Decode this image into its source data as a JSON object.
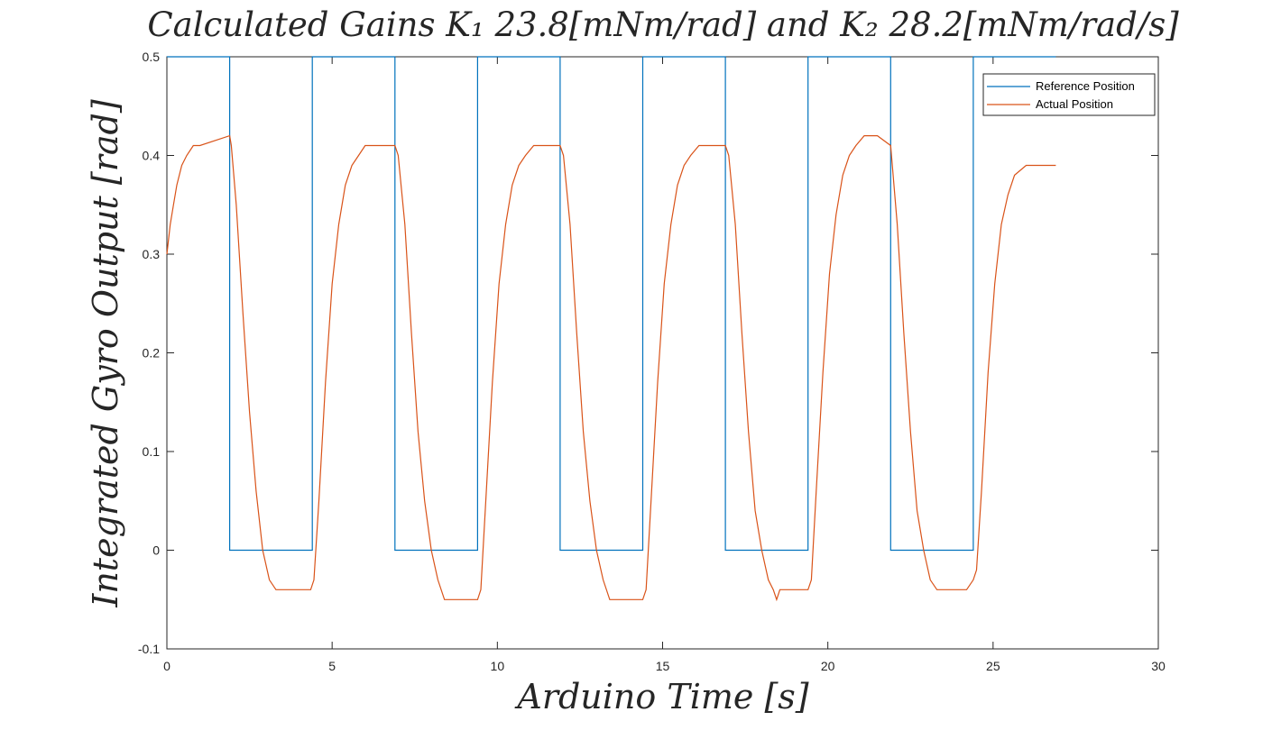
{
  "chart_data": {
    "type": "line",
    "title": "Calculated Gains K₁ 23.8[mNm/rad] and K₂ 28.2[mNm/rad/s]",
    "xlabel": "Arduino Time [s]",
    "ylabel": "Integrated Gyro Output [rad]",
    "xlim": [
      0,
      30
    ],
    "ylim": [
      -0.1,
      0.5
    ],
    "xticks": [
      0,
      5,
      10,
      15,
      20,
      25,
      30
    ],
    "yticks": [
      -0.1,
      0,
      0.1,
      0.2,
      0.3,
      0.4,
      0.5
    ],
    "grid": false,
    "legend": {
      "position": "top-right",
      "entries": [
        "Reference Position",
        "Actual Position"
      ]
    },
    "series": [
      {
        "name": "Reference Position",
        "color": "#0072BD",
        "step": true,
        "x": [
          0,
          1.9,
          1.9,
          4.4,
          4.4,
          6.9,
          6.9,
          9.4,
          9.4,
          11.9,
          11.9,
          14.4,
          14.4,
          16.9,
          16.9,
          19.4,
          19.4,
          21.9,
          21.9,
          24.4,
          24.4,
          26.9
        ],
        "y": [
          0.5,
          0.5,
          0,
          0,
          0.5,
          0.5,
          0,
          0,
          0.5,
          0.5,
          0,
          0,
          0.5,
          0.5,
          0,
          0,
          0.5,
          0.5,
          0,
          0,
          0.5,
          0.5
        ]
      },
      {
        "name": "Actual Position",
        "color": "#D95319",
        "step": false,
        "x": [
          0,
          0.1,
          0.2,
          0.3,
          0.45,
          0.6,
          0.8,
          1.0,
          1.9,
          1.95,
          2.1,
          2.3,
          2.5,
          2.7,
          2.9,
          3.1,
          3.3,
          3.5,
          4.35,
          4.45,
          4.6,
          4.8,
          5.0,
          5.2,
          5.4,
          5.6,
          5.8,
          6.0,
          6.3,
          6.9,
          7.0,
          7.2,
          7.4,
          7.6,
          7.8,
          8.0,
          8.2,
          8.4,
          8.6,
          9.4,
          9.5,
          9.65,
          9.85,
          10.05,
          10.25,
          10.45,
          10.65,
          10.85,
          11.1,
          11.9,
          12.0,
          12.2,
          12.4,
          12.6,
          12.8,
          13.0,
          13.2,
          13.4,
          13.6,
          14.4,
          14.5,
          14.65,
          14.85,
          15.05,
          15.25,
          15.45,
          15.65,
          15.85,
          16.1,
          16.9,
          17.0,
          17.2,
          17.4,
          17.6,
          17.8,
          18.0,
          18.2,
          18.35,
          18.45,
          18.55,
          19.4,
          19.5,
          19.65,
          19.85,
          20.05,
          20.25,
          20.45,
          20.65,
          20.85,
          21.1,
          21.5,
          21.9,
          22.1,
          22.3,
          22.5,
          22.7,
          22.9,
          23.1,
          23.3,
          23.5,
          24.2,
          24.4,
          24.5,
          24.65,
          24.85,
          25.05,
          25.25,
          25.45,
          25.65,
          26.0,
          26.9
        ],
        "y": [
          0.3,
          0.33,
          0.35,
          0.37,
          0.39,
          0.4,
          0.41,
          0.41,
          0.42,
          0.41,
          0.35,
          0.24,
          0.14,
          0.06,
          0.0,
          -0.03,
          -0.04,
          -0.04,
          -0.04,
          -0.03,
          0.05,
          0.17,
          0.27,
          0.33,
          0.37,
          0.39,
          0.4,
          0.41,
          0.41,
          0.41,
          0.4,
          0.33,
          0.22,
          0.12,
          0.05,
          0.0,
          -0.03,
          -0.05,
          -0.05,
          -0.05,
          -0.04,
          0.05,
          0.17,
          0.27,
          0.33,
          0.37,
          0.39,
          0.4,
          0.41,
          0.41,
          0.4,
          0.33,
          0.22,
          0.12,
          0.05,
          0.0,
          -0.03,
          -0.05,
          -0.05,
          -0.05,
          -0.04,
          0.05,
          0.17,
          0.27,
          0.33,
          0.37,
          0.39,
          0.4,
          0.41,
          0.41,
          0.4,
          0.33,
          0.22,
          0.12,
          0.04,
          0.0,
          -0.03,
          -0.04,
          -0.05,
          -0.04,
          -0.04,
          -0.03,
          0.06,
          0.18,
          0.28,
          0.34,
          0.38,
          0.4,
          0.41,
          0.42,
          0.42,
          0.41,
          0.33,
          0.22,
          0.12,
          0.04,
          0.0,
          -0.03,
          -0.04,
          -0.04,
          -0.04,
          -0.03,
          -0.02,
          0.06,
          0.18,
          0.27,
          0.33,
          0.36,
          0.38,
          0.39,
          0.39
        ]
      }
    ]
  }
}
